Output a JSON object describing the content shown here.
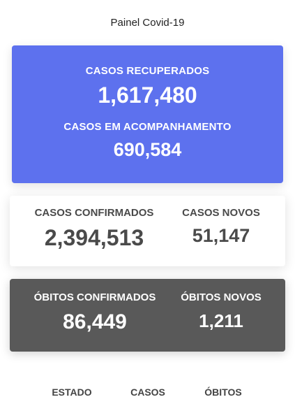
{
  "header": {
    "title": "Painel Covid-19"
  },
  "recovered_card": {
    "recovered_label": "CASOS RECUPERADOS",
    "recovered_value": "1,617,480",
    "monitoring_label": "CASOS EM ACOMPANHAMENTO",
    "monitoring_value": "690,584",
    "color": "#5d71ee"
  },
  "confirmed_card": {
    "confirmed_label": "CASOS CONFIRMADOS",
    "confirmed_value": "2,394,513",
    "new_label": "CASOS NOVOS",
    "new_value": "51,147"
  },
  "deaths_card": {
    "confirmed_label": "ÓBITOS CONFIRMADOS",
    "confirmed_value": "86,449",
    "new_label": "ÓBITOS NOVOS",
    "new_value": "1,211",
    "color": "#595959"
  },
  "bottom_nav": {
    "items": [
      {
        "label": "ESTADO"
      },
      {
        "label": "CASOS"
      },
      {
        "label": "ÓBITOS"
      }
    ]
  }
}
